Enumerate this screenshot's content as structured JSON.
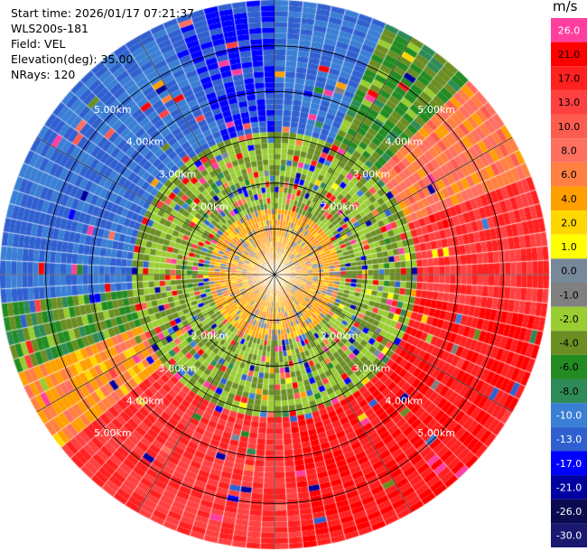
{
  "info": {
    "start_time": "Start time: 2026/01/17 07:21:37",
    "station": "WLS200s-181",
    "field": "Field: VEL",
    "elevation": "Elevation(deg): 35.00",
    "nrays": "NRays: 120"
  },
  "colorbar": {
    "unit": "m/s",
    "levels": [
      26.0,
      21.0,
      17.0,
      13.0,
      10.0,
      8.0,
      6.0,
      4.0,
      2.0,
      1.0,
      0.0,
      -1.0,
      -2.0,
      -4.0,
      -6.0,
      -8.0,
      -10.0,
      -13.0,
      -17.0,
      -21.0,
      -26.0,
      -30.0
    ],
    "labels": [
      "26.0",
      "21.0",
      "17.0",
      "13.0",
      "10.0",
      "8.0",
      "6.0",
      "4.0",
      "2.0",
      "1.0",
      "0.0",
      "-1.0",
      "-2.0",
      "-4.0",
      "-6.0",
      "-8.0",
      "-10.0",
      "-13.0",
      "-17.0",
      "-21.0",
      "-26.0",
      "-30.0"
    ],
    "colors": [
      "#ff3ea0",
      "#ff0000",
      "#ff2020",
      "#ff4040",
      "#ff5c50",
      "#ff7060",
      "#ff8040",
      "#ffa000",
      "#ffd700",
      "#ffff00",
      "#778899",
      "#808080",
      "#9acd32",
      "#6b8e23",
      "#228b22",
      "#2e8b57",
      "#3a7fd5",
      "#3060d0",
      "#0000ff",
      "#0000a0",
      "#0a0a50",
      "#191970"
    ]
  },
  "chart_data": {
    "type": "heatmap",
    "projection": "polar-ppi",
    "field": "VEL",
    "units": "m/s",
    "nrays": 120,
    "range_rings_km": [
      1,
      2,
      3,
      4,
      5
    ],
    "ring_labels": [
      "2.00km",
      "3.00km",
      "4.00km",
      "5.00km"
    ],
    "max_range_km": 6.0,
    "azimuth_sectors": [
      {
        "az_from": 0,
        "az_to": 25,
        "value": -13
      },
      {
        "az_from": 25,
        "az_to": 45,
        "value": -6
      },
      {
        "az_from": 45,
        "az_to": 70,
        "value": 6
      },
      {
        "az_from": 70,
        "az_to": 100,
        "value": 13
      },
      {
        "az_from": 100,
        "az_to": 175,
        "value": 17
      },
      {
        "az_from": 175,
        "az_to": 230,
        "value": 13
      },
      {
        "az_from": 230,
        "az_to": 250,
        "value": 4
      },
      {
        "az_from": 250,
        "az_to": 265,
        "value": -6
      },
      {
        "az_from": 265,
        "az_to": 340,
        "value": -13
      },
      {
        "az_from": 340,
        "az_to": 360,
        "value": -17
      }
    ],
    "inner_core": {
      "to_km": 1.5,
      "value": 3
    },
    "mid_band": {
      "from_km": 1.5,
      "to_km": 3.2,
      "value": -4
    }
  }
}
